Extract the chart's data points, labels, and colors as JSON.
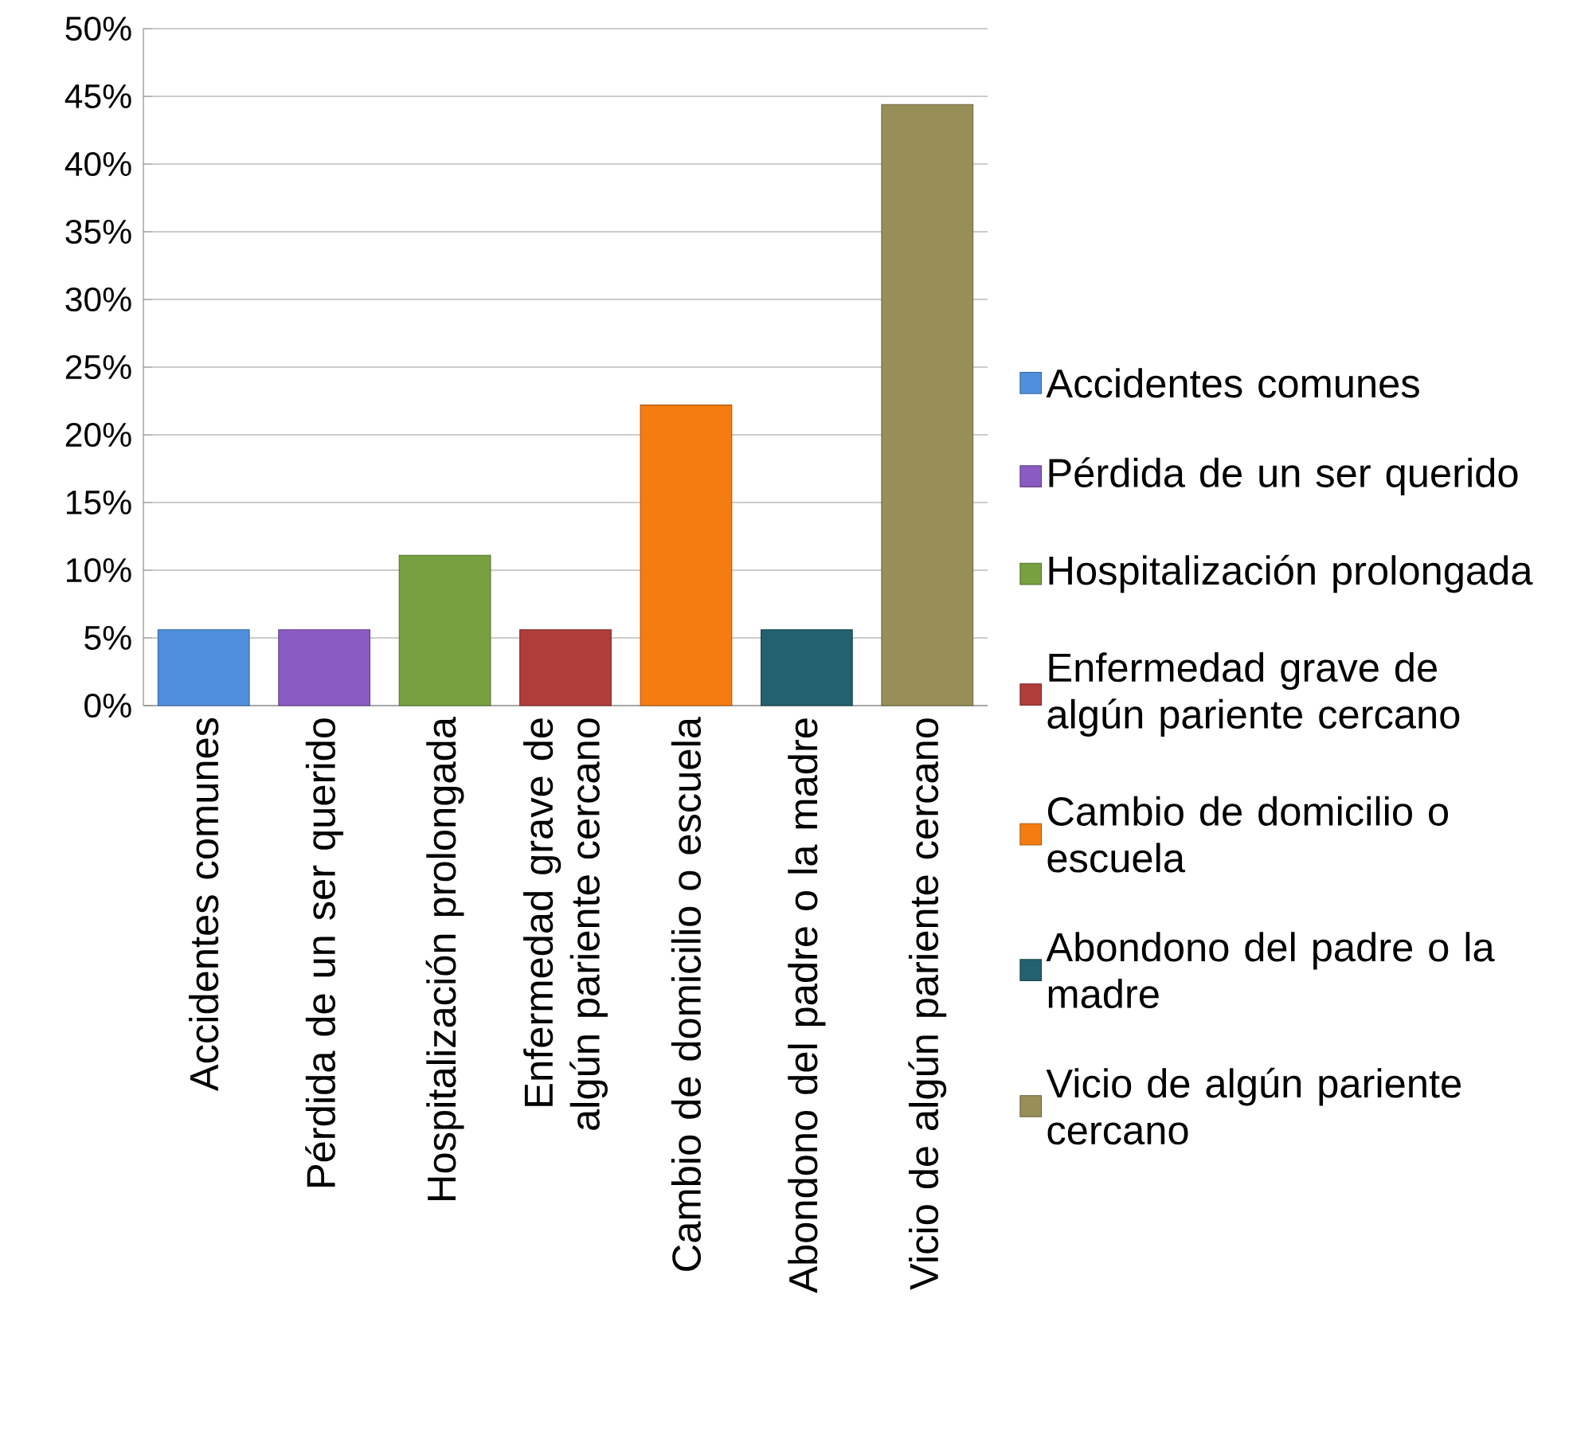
{
  "chart_data": {
    "type": "bar",
    "categories": [
      "Accidentes comunes",
      "Pérdida de un ser querido",
      "Hospitalización prolongada",
      "Enfermedad grave de algún pariente cercano",
      "Cambio de domicilio o escuela",
      "Abondono del padre o la madre",
      "Vicio de algún pariente cercano"
    ],
    "series": [
      {
        "name": "Accidentes comunes",
        "color": "#4f8fdc",
        "values": [
          5.6,
          null,
          null,
          null,
          null,
          null,
          null
        ]
      },
      {
        "name": "Pérdida de un ser querido",
        "color": "#8a5bc2",
        "values": [
          null,
          5.6,
          null,
          null,
          null,
          null,
          null
        ]
      },
      {
        "name": "Hospitalización prolongada",
        "color": "#77a040",
        "values": [
          null,
          null,
          11.1,
          null,
          null,
          null,
          null
        ]
      },
      {
        "name": "Enfermedad grave de algún pariente cercano",
        "color": "#b03c3c",
        "values": [
          null,
          null,
          null,
          5.6,
          null,
          null,
          null
        ]
      },
      {
        "name": "Cambio de domicilio o escuela",
        "color": "#f57c10",
        "values": [
          null,
          null,
          null,
          null,
          22.2,
          null,
          null
        ]
      },
      {
        "name": "Abondono del padre o la madre",
        "color": "#24606f",
        "values": [
          null,
          null,
          null,
          null,
          null,
          5.6,
          null
        ]
      },
      {
        "name": "Vicio de algún pariente cercano",
        "color": "#988e58",
        "values": [
          null,
          null,
          null,
          null,
          null,
          null,
          44.4
        ]
      }
    ],
    "ylim": [
      0,
      50
    ],
    "yticks": [
      {
        "value": 0,
        "label": "0%"
      },
      {
        "value": 5,
        "label": "5%"
      },
      {
        "value": 10,
        "label": "10%"
      },
      {
        "value": 15,
        "label": "15%"
      },
      {
        "value": 20,
        "label": "20%"
      },
      {
        "value": 25,
        "label": "25%"
      },
      {
        "value": 30,
        "label": "30%"
      },
      {
        "value": 35,
        "label": "35%"
      },
      {
        "value": 40,
        "label": "40%"
      },
      {
        "value": 45,
        "label": "45%"
      },
      {
        "value": 50,
        "label": "50%"
      }
    ],
    "grid": "y",
    "legend": "right"
  }
}
